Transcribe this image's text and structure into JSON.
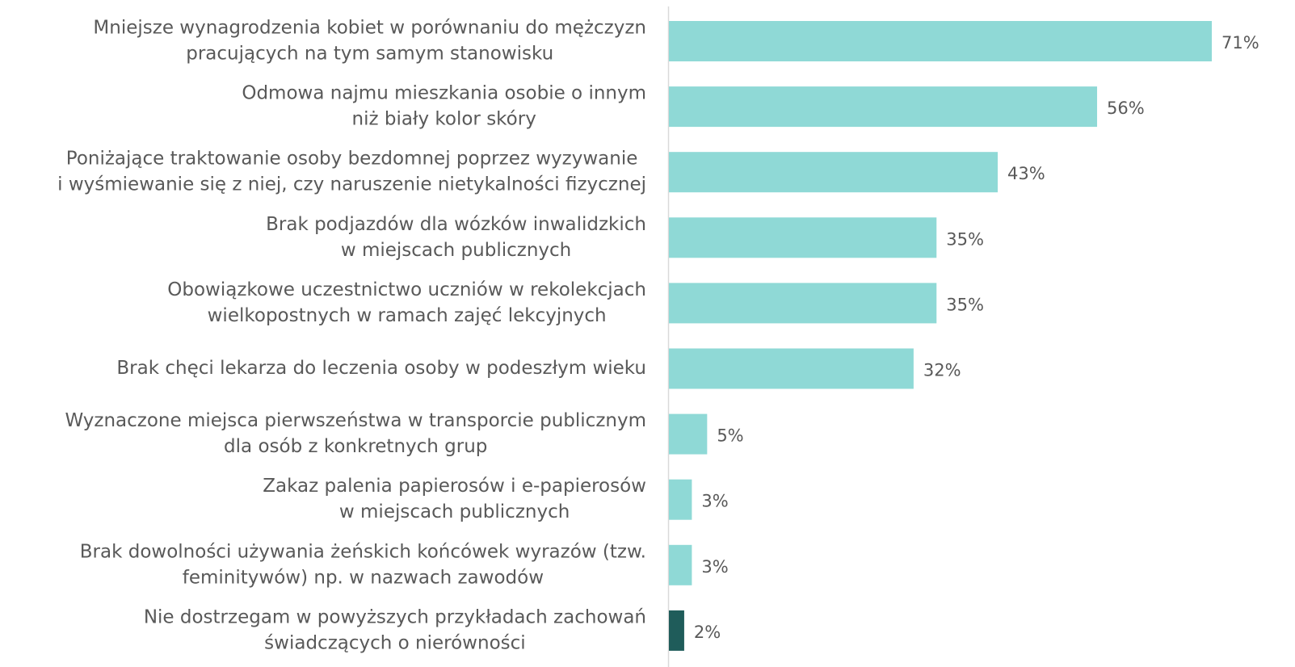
{
  "chart_data": {
    "type": "barh",
    "categories": [
      [
        "Mniejsze wynagrodzenia kobiet w porównaniu do mężczyzn",
        "pracujących na tym samym stanowisku"
      ],
      [
        "Odmowa najmu mieszkania osobie o innym",
        "niż biały kolor skóry"
      ],
      [
        "Poniżające traktowanie osoby bezdomnej poprzez wyzywanie",
        "i wyśmiewanie się z niej, czy naruszenie nietykalności fizycznej"
      ],
      [
        "Brak podjazdów dla wózków inwalidzkich",
        "w miejscach publicznych"
      ],
      [
        "Obowiązkowe uczestnictwo uczniów w rekolekcjach",
        "wielkopostnych w ramach zajęć lekcyjnych"
      ],
      [
        "Brak chęci lekarza do leczenia osoby w podeszłym wieku"
      ],
      [
        "Wyznaczone miejsca pierwszeństwa w transporcie publicznym",
        "dla osób z konkretnych grup"
      ],
      [
        "Zakaz palenia papierosów i e-papierosów",
        "w miejscach publicznych"
      ],
      [
        "Brak dowolności używania żeńskich końcówek wyrazów (tzw.",
        "feminitywów) np. w nazwach zawodów"
      ],
      [
        "Nie dostrzegam w powyższych przykładach zachowań",
        "świadczących o nierówności"
      ]
    ],
    "values": [
      71,
      56,
      43,
      35,
      35,
      32,
      5,
      3,
      3,
      2
    ],
    "value_labels": [
      "71%",
      "56%",
      "43%",
      "35%",
      "35%",
      "32%",
      "5%",
      "3%",
      "3%",
      "2%"
    ],
    "colors": [
      "#8fd9d6",
      "#8fd9d6",
      "#8fd9d6",
      "#8fd9d6",
      "#8fd9d6",
      "#8fd9d6",
      "#8fd9d6",
      "#8fd9d6",
      "#8fd9d6",
      "#1f5c5a"
    ]
  }
}
